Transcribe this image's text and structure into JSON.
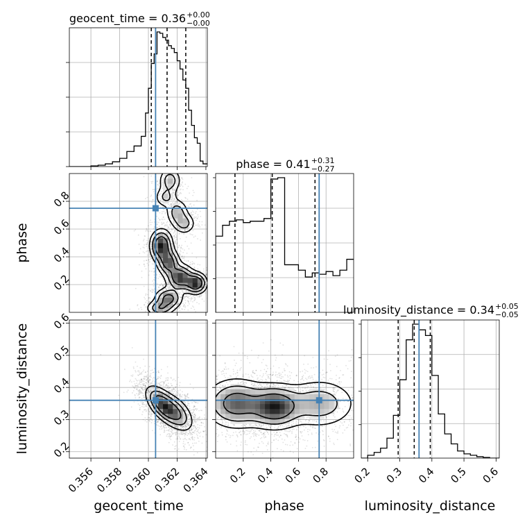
{
  "chart_data": {
    "type": "corner",
    "parameters": [
      "geocent_time",
      "phase",
      "luminosity_distance"
    ],
    "axis_labels": [
      "geocent_time",
      "phase",
      "luminosity_distance"
    ],
    "injection": {
      "geocent_time": 0.3605,
      "phase": 0.75,
      "luminosity_distance": 0.36
    },
    "ranges": {
      "geocent_time": [
        0.3545,
        0.3641
      ],
      "phase": [
        0.0,
        1.0
      ],
      "luminosity_distance": [
        0.18,
        0.61
      ]
    },
    "ticks": {
      "geocent_time": [
        0.356,
        0.358,
        0.36,
        0.362,
        0.364
      ],
      "phase": [
        0.2,
        0.4,
        0.6,
        0.8
      ],
      "luminosity_distance": [
        0.2,
        0.3,
        0.4,
        0.5,
        0.6
      ]
    },
    "tick_labels": {
      "geocent_time": [
        "0.356",
        "0.358",
        "0.360",
        "0.362",
        "0.364"
      ],
      "phase": [
        "0.2",
        "0.4",
        "0.6",
        "0.8"
      ],
      "luminosity_distance": [
        "0.2",
        "0.3",
        "0.4",
        "0.5",
        "0.6"
      ]
    },
    "titles": [
      {
        "name": "geocent_time",
        "value": "0.36",
        "plus": "+0.00",
        "minus": "−0.00"
      },
      {
        "name": "phase",
        "value": "0.41",
        "plus": "+0.31",
        "minus": "−0.27"
      },
      {
        "name": "luminosity_distance",
        "value": "0.34",
        "plus": "+0.05",
        "minus": "−0.05"
      }
    ],
    "quantiles": {
      "geocent_time": [
        0.3602,
        0.3613,
        0.3626
      ],
      "phase": [
        0.14,
        0.41,
        0.72
      ],
      "luminosity_distance": [
        0.295,
        0.345,
        0.395
      ]
    },
    "hist1d": {
      "geocent_time": {
        "edges": [
          0.3545,
          0.355,
          0.3555,
          0.356,
          0.3565,
          0.357,
          0.3575,
          0.358,
          0.3585,
          0.359,
          0.3595,
          0.3598,
          0.36,
          0.3602,
          0.3604,
          0.3606,
          0.3608,
          0.361,
          0.3612,
          0.3614,
          0.3616,
          0.3618,
          0.362,
          0.3622,
          0.3624,
          0.3626,
          0.3628,
          0.363,
          0.3632,
          0.3634,
          0.3636,
          0.3638,
          0.3641
        ],
        "counts": [
          0,
          0,
          0,
          0.005,
          0.01,
          0.02,
          0.035,
          0.06,
          0.11,
          0.15,
          0.22,
          0.39,
          0.57,
          0.75,
          0.82,
          0.98,
          0.97,
          0.94,
          0.92,
          0.88,
          0.86,
          0.83,
          0.77,
          0.71,
          0.63,
          0.57,
          0.41,
          0.3,
          0.21,
          0.17,
          0.04,
          0.02
        ]
      },
      "phase": {
        "edges": [
          0.0,
          0.05,
          0.1,
          0.15,
          0.2,
          0.25,
          0.3,
          0.35,
          0.4,
          0.45,
          0.5,
          0.55,
          0.6,
          0.65,
          0.7,
          0.75,
          0.8,
          0.85,
          0.9,
          0.95,
          1.0
        ],
        "counts": [
          0.56,
          0.64,
          0.67,
          0.68,
          0.66,
          0.67,
          0.67,
          0.69,
          0.98,
          0.99,
          0.35,
          0.35,
          0.31,
          0.26,
          0.29,
          0.28,
          0.3,
          0.27,
          0.31,
          0.39
        ]
      },
      "luminosity_distance": {
        "edges": [
          0.18,
          0.2,
          0.22,
          0.24,
          0.26,
          0.28,
          0.3,
          0.32,
          0.34,
          0.36,
          0.38,
          0.4,
          0.42,
          0.44,
          0.46,
          0.48,
          0.5,
          0.52,
          0.54,
          0.56,
          0.58,
          0.61
        ],
        "counts": [
          0,
          0.02,
          0.04,
          0.07,
          0.14,
          0.3,
          0.55,
          0.83,
          0.94,
          0.9,
          0.86,
          0.58,
          0.31,
          0.17,
          0.1,
          0.05,
          0.03,
          0.02,
          0.01,
          0.005,
          0
        ]
      }
    },
    "density_2d": {
      "phase_vs_geocent_time": [
        {
          "x": 0.3615,
          "y": 0.95,
          "sx": 0.0004,
          "sy": 0.05,
          "w": 0.45
        },
        {
          "x": 0.3612,
          "y": 0.83,
          "sx": 0.0004,
          "sy": 0.04,
          "w": 0.35
        },
        {
          "x": 0.362,
          "y": 0.72,
          "sx": 0.0004,
          "sy": 0.05,
          "w": 0.45
        },
        {
          "x": 0.3625,
          "y": 0.64,
          "sx": 0.0004,
          "sy": 0.04,
          "w": 0.4
        },
        {
          "x": 0.3609,
          "y": 0.48,
          "sx": 0.0004,
          "sy": 0.06,
          "w": 1.0
        },
        {
          "x": 0.3614,
          "y": 0.36,
          "sx": 0.0004,
          "sy": 0.05,
          "w": 0.75
        },
        {
          "x": 0.3622,
          "y": 0.25,
          "sx": 0.0005,
          "sy": 0.05,
          "w": 0.9
        },
        {
          "x": 0.3633,
          "y": 0.21,
          "sx": 0.0004,
          "sy": 0.04,
          "w": 0.95
        },
        {
          "x": 0.3614,
          "y": 0.1,
          "sx": 0.0005,
          "sy": 0.04,
          "w": 0.7
        },
        {
          "x": 0.3608,
          "y": 0.03,
          "sx": 0.0005,
          "sy": 0.03,
          "w": 0.5
        }
      ],
      "luminosity_distance_vs_geocent_time": [
        {
          "x": 0.361,
          "y": 0.345,
          "sx": 0.0006,
          "sy": 0.03,
          "w": 1.0,
          "rho": -0.6
        },
        {
          "x": 0.362,
          "y": 0.32,
          "sx": 0.0006,
          "sy": 0.03,
          "w": 0.6,
          "rho": -0.5
        }
      ],
      "luminosity_distance_vs_phase": [
        {
          "x": 0.15,
          "y": 0.35,
          "sx": 0.12,
          "sy": 0.04,
          "w": 0.8
        },
        {
          "x": 0.43,
          "y": 0.34,
          "sx": 0.1,
          "sy": 0.035,
          "w": 1.0
        },
        {
          "x": 0.75,
          "y": 0.35,
          "sx": 0.14,
          "sy": 0.04,
          "w": 0.5
        }
      ]
    },
    "colors": {
      "truth": "#4682b4",
      "hist": "#000000",
      "grid": "#b0b0b0",
      "scatter": "#000000"
    }
  }
}
